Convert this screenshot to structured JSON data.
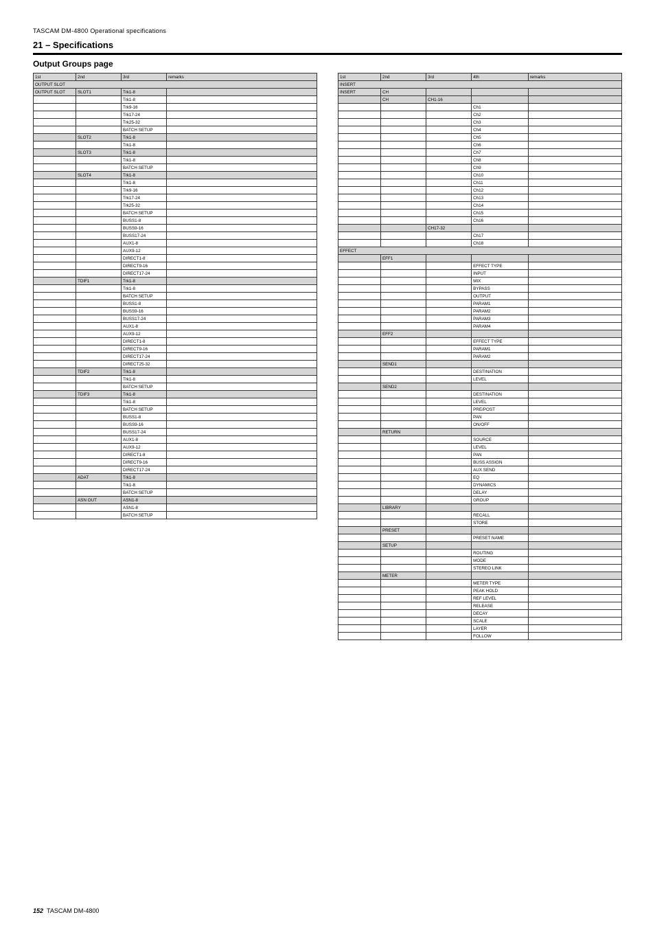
{
  "header_line": "TASCAM DM-4800 Operational specifications",
  "header_sub": "21 – Specifications",
  "section_title": "Output Groups page",
  "columns_a": [
    "1st",
    "2nd",
    "3rd",
    "remarks"
  ],
  "columns_b": [
    "1st",
    "2nd",
    "3rd",
    "4th",
    "remarks"
  ],
  "groups_a": [
    {
      "shaded": true,
      "cells": [
        "OUTPUT SLOT"
      ]
    },
    {
      "shaded": true,
      "cells": [
        "OUTPUT SLOT",
        "SLOT1",
        "Trk1-8",
        ""
      ]
    },
    {
      "cells": [
        "",
        "",
        "Trk1-8",
        ""
      ]
    },
    {
      "cells": [
        "",
        "",
        "Trk9-16",
        ""
      ]
    },
    {
      "cells": [
        "",
        "",
        "Trk17-24",
        ""
      ]
    },
    {
      "cells": [
        "",
        "",
        "Trk25-32",
        ""
      ]
    },
    {
      "cells": [
        "",
        "",
        "BATCH SETUP",
        ""
      ]
    },
    {
      "shaded": true,
      "cells": [
        "",
        "SLOT2",
        "Trk1-8",
        ""
      ]
    },
    {
      "cells": [
        "",
        "",
        "Trk1-8",
        ""
      ]
    },
    {
      "shaded": true,
      "cells": [
        "",
        "SLOT3",
        "Trk1-8",
        ""
      ]
    },
    {
      "cells": [
        "",
        "",
        "Trk1-8",
        ""
      ]
    },
    {
      "cells": [
        "",
        "",
        "BATCH SETUP",
        ""
      ]
    },
    {
      "shaded": true,
      "cells": [
        "",
        "SLOT4",
        "Trk1-8",
        ""
      ]
    },
    {
      "cells": [
        "",
        "",
        "Trk1-8",
        ""
      ]
    },
    {
      "cells": [
        "",
        "",
        "Trk9-16",
        ""
      ]
    },
    {
      "cells": [
        "",
        "",
        "Trk17-24",
        ""
      ]
    },
    {
      "cells": [
        "",
        "",
        "Trk25-32",
        ""
      ]
    },
    {
      "cells": [
        "",
        "",
        "BATCH SETUP",
        ""
      ]
    },
    {
      "cells": [
        "",
        "",
        "BUSS1-8",
        ""
      ]
    },
    {
      "cells": [
        "",
        "",
        "BUSS9-16",
        ""
      ]
    },
    {
      "cells": [
        "",
        "",
        "BUSS17-24",
        ""
      ]
    },
    {
      "cells": [
        "",
        "",
        "AUX1-8",
        ""
      ]
    },
    {
      "cells": [
        "",
        "",
        "AUX9-12",
        ""
      ]
    },
    {
      "cells": [
        "",
        "",
        "DIRECT1-8",
        ""
      ]
    },
    {
      "cells": [
        "",
        "",
        "DIRECT9-16",
        ""
      ]
    },
    {
      "cells": [
        "",
        "",
        "DIRECT17-24",
        ""
      ]
    },
    {
      "shaded": true,
      "cells": [
        "",
        "TDIF1",
        "Trk1-8",
        ""
      ]
    },
    {
      "cells": [
        "",
        "",
        "Trk1-8",
        ""
      ]
    },
    {
      "cells": [
        "",
        "",
        "BATCH SETUP",
        ""
      ]
    },
    {
      "cells": [
        "",
        "",
        "BUSS1-8",
        ""
      ]
    },
    {
      "cells": [
        "",
        "",
        "BUSS9-16",
        ""
      ]
    },
    {
      "cells": [
        "",
        "",
        "BUSS17-24",
        ""
      ]
    },
    {
      "cells": [
        "",
        "",
        "AUX1-8",
        ""
      ]
    },
    {
      "cells": [
        "",
        "",
        "AUX9-12",
        ""
      ]
    },
    {
      "cells": [
        "",
        "",
        "DIRECT1-8",
        ""
      ]
    },
    {
      "cells": [
        "",
        "",
        "DIRECT9-16",
        ""
      ]
    },
    {
      "cells": [
        "",
        "",
        "DIRECT17-24",
        ""
      ]
    },
    {
      "cells": [
        "",
        "",
        "DIRECT25-32",
        ""
      ]
    },
    {
      "shaded": true,
      "cells": [
        "",
        "TDIF2",
        "Trk1-8",
        ""
      ]
    },
    {
      "cells": [
        "",
        "",
        "Trk1-8",
        ""
      ]
    },
    {
      "cells": [
        "",
        "",
        "BATCH SETUP",
        ""
      ]
    },
    {
      "shaded": true,
      "cells": [
        "",
        "TDIF3",
        "Trk1-8",
        ""
      ]
    },
    {
      "cells": [
        "",
        "",
        "Trk1-8",
        ""
      ]
    },
    {
      "cells": [
        "",
        "",
        "BATCH SETUP",
        ""
      ]
    },
    {
      "cells": [
        "",
        "",
        "BUSS1-8",
        ""
      ]
    },
    {
      "cells": [
        "",
        "",
        "BUSS9-16",
        ""
      ]
    },
    {
      "cells": [
        "",
        "",
        "BUSS17-24",
        ""
      ]
    },
    {
      "cells": [
        "",
        "",
        "AUX1-8",
        ""
      ]
    },
    {
      "cells": [
        "",
        "",
        "AUX9-12",
        ""
      ]
    },
    {
      "cells": [
        "",
        "",
        "DIRECT1-8",
        ""
      ]
    },
    {
      "cells": [
        "",
        "",
        "DIRECT9-16",
        ""
      ]
    },
    {
      "cells": [
        "",
        "",
        "DIRECT17-24",
        ""
      ]
    },
    {
      "shaded": true,
      "cells": [
        "",
        "ADAT",
        "Trk1-8",
        ""
      ]
    },
    {
      "cells": [
        "",
        "",
        "Trk1-8",
        ""
      ]
    },
    {
      "cells": [
        "",
        "",
        "BATCH SETUP",
        ""
      ]
    },
    {
      "shaded": true,
      "cells": [
        "",
        "ASN OUT",
        "ASN1-8",
        ""
      ]
    },
    {
      "cells": [
        "",
        "",
        "ASN1-8",
        ""
      ]
    },
    {
      "cells": [
        "",
        "",
        "BATCH SETUP",
        ""
      ]
    }
  ],
  "groups_b": [
    {
      "shaded": true,
      "cells": [
        "INSERT"
      ]
    },
    {
      "shaded": true,
      "cells": [
        "INSERT",
        "CH",
        "",
        "",
        ""
      ]
    },
    {
      "shaded": true,
      "cells": [
        "",
        "CH",
        "CH1-16",
        "",
        ""
      ]
    },
    {
      "cells": [
        "",
        "",
        "",
        "Ch1",
        ""
      ]
    },
    {
      "cells": [
        "",
        "",
        "",
        "Ch2",
        ""
      ]
    },
    {
      "cells": [
        "",
        "",
        "",
        "Ch3",
        ""
      ]
    },
    {
      "cells": [
        "",
        "",
        "",
        "Ch4",
        ""
      ]
    },
    {
      "cells": [
        "",
        "",
        "",
        "Ch5",
        ""
      ]
    },
    {
      "cells": [
        "",
        "",
        "",
        "Ch6",
        ""
      ]
    },
    {
      "cells": [
        "",
        "",
        "",
        "Ch7",
        ""
      ]
    },
    {
      "cells": [
        "",
        "",
        "",
        "Ch8",
        ""
      ]
    },
    {
      "cells": [
        "",
        "",
        "",
        "Ch9",
        ""
      ]
    },
    {
      "cells": [
        "",
        "",
        "",
        "Ch10",
        ""
      ]
    },
    {
      "cells": [
        "",
        "",
        "",
        "Ch11",
        ""
      ]
    },
    {
      "cells": [
        "",
        "",
        "",
        "Ch12",
        ""
      ]
    },
    {
      "cells": [
        "",
        "",
        "",
        "Ch13",
        ""
      ]
    },
    {
      "cells": [
        "",
        "",
        "",
        "Ch14",
        ""
      ]
    },
    {
      "cells": [
        "",
        "",
        "",
        "Ch15",
        ""
      ]
    },
    {
      "cells": [
        "",
        "",
        "",
        "Ch16",
        ""
      ]
    },
    {
      "shaded": true,
      "cells": [
        "",
        "",
        "CH17-32",
        "",
        ""
      ]
    },
    {
      "cells": [
        "",
        "",
        "",
        "Ch17",
        ""
      ]
    },
    {
      "cells": [
        "",
        "",
        "",
        "Ch18",
        ""
      ]
    },
    {
      "shaded": true,
      "cells": [
        "EFFECT"
      ]
    },
    {
      "shaded": true,
      "cells": [
        "",
        "EFF1",
        "",
        "",
        ""
      ]
    },
    {
      "cells": [
        "",
        "",
        "",
        "EFFECT TYPE",
        ""
      ]
    },
    {
      "cells": [
        "",
        "",
        "",
        "INPUT",
        ""
      ]
    },
    {
      "cells": [
        "",
        "",
        "",
        "MIX",
        ""
      ]
    },
    {
      "cells": [
        "",
        "",
        "",
        "BYPASS",
        ""
      ]
    },
    {
      "cells": [
        "",
        "",
        "",
        "OUTPUT",
        ""
      ]
    },
    {
      "cells": [
        "",
        "",
        "",
        "PARAM1",
        ""
      ]
    },
    {
      "cells": [
        "",
        "",
        "",
        "PARAM2",
        ""
      ]
    },
    {
      "cells": [
        "",
        "",
        "",
        "PARAM3",
        ""
      ]
    },
    {
      "cells": [
        "",
        "",
        "",
        "PARAM4",
        ""
      ]
    },
    {
      "shaded": true,
      "cells": [
        "",
        "EFF2",
        "",
        "",
        ""
      ]
    },
    {
      "cells": [
        "",
        "",
        "",
        "EFFECT TYPE",
        ""
      ]
    },
    {
      "cells": [
        "",
        "",
        "",
        "PARAM1",
        ""
      ]
    },
    {
      "cells": [
        "",
        "",
        "",
        "PARAM2",
        ""
      ]
    },
    {
      "shaded": true,
      "cells": [
        "",
        "SEND1",
        "",
        "",
        ""
      ]
    },
    {
      "cells": [
        "",
        "",
        "",
        "DESTINATION",
        ""
      ]
    },
    {
      "cells": [
        "",
        "",
        "",
        "LEVEL",
        ""
      ]
    },
    {
      "shaded": true,
      "cells": [
        "",
        "SEND2",
        "",
        "",
        ""
      ]
    },
    {
      "cells": [
        "",
        "",
        "",
        "DESTINATION",
        ""
      ]
    },
    {
      "cells": [
        "",
        "",
        "",
        "LEVEL",
        ""
      ]
    },
    {
      "cells": [
        "",
        "",
        "",
        "PRE/POST",
        ""
      ]
    },
    {
      "cells": [
        "",
        "",
        "",
        "PAN",
        ""
      ]
    },
    {
      "cells": [
        "",
        "",
        "",
        "ON/OFF",
        ""
      ]
    },
    {
      "shaded": true,
      "cells": [
        "",
        "RETURN",
        "",
        "",
        ""
      ]
    },
    {
      "cells": [
        "",
        "",
        "",
        "SOURCE",
        ""
      ]
    },
    {
      "cells": [
        "",
        "",
        "",
        "LEVEL",
        ""
      ]
    },
    {
      "cells": [
        "",
        "",
        "",
        "PAN",
        ""
      ]
    },
    {
      "cells": [
        "",
        "",
        "",
        "BUSS ASSIGN",
        ""
      ]
    },
    {
      "cells": [
        "",
        "",
        "",
        "AUX SEND",
        ""
      ]
    },
    {
      "cells": [
        "",
        "",
        "",
        "EQ",
        ""
      ]
    },
    {
      "cells": [
        "",
        "",
        "",
        "DYNAMICS",
        ""
      ]
    },
    {
      "cells": [
        "",
        "",
        "",
        "DELAY",
        ""
      ]
    },
    {
      "cells": [
        "",
        "",
        "",
        "GROUP",
        ""
      ]
    },
    {
      "shaded": true,
      "cells": [
        "",
        "LIBRARY",
        "",
        "",
        ""
      ]
    },
    {
      "cells": [
        "",
        "",
        "",
        "RECALL",
        ""
      ]
    },
    {
      "cells": [
        "",
        "",
        "",
        "STORE",
        ""
      ]
    },
    {
      "shaded": true,
      "cells": [
        "",
        "PRESET",
        "",
        "",
        ""
      ]
    },
    {
      "cells": [
        "",
        "",
        "",
        "PRESET NAME",
        ""
      ]
    },
    {
      "shaded": true,
      "cells": [
        "",
        "SETUP",
        "",
        "",
        ""
      ]
    },
    {
      "cells": [
        "",
        "",
        "",
        "ROUTING",
        ""
      ]
    },
    {
      "cells": [
        "",
        "",
        "",
        "MODE",
        ""
      ]
    },
    {
      "cells": [
        "",
        "",
        "",
        "STEREO LINK",
        ""
      ]
    },
    {
      "shaded": true,
      "cells": [
        "",
        "METER",
        "",
        "",
        ""
      ]
    },
    {
      "cells": [
        "",
        "",
        "",
        "METER TYPE",
        ""
      ]
    },
    {
      "cells": [
        "",
        "",
        "",
        "PEAK HOLD",
        ""
      ]
    },
    {
      "cells": [
        "",
        "",
        "",
        "REF LEVEL",
        ""
      ]
    },
    {
      "cells": [
        "",
        "",
        "",
        "RELEASE",
        ""
      ]
    },
    {
      "cells": [
        "",
        "",
        "",
        "DECAY",
        ""
      ]
    },
    {
      "cells": [
        "",
        "",
        "",
        "SCALE",
        ""
      ]
    },
    {
      "cells": [
        "",
        "",
        "",
        "LAYER",
        ""
      ]
    },
    {
      "cells": [
        "",
        "",
        "",
        "FOLLOW",
        ""
      ]
    }
  ],
  "footer_page": "152",
  "footer_text": "TASCAM DM-4800"
}
